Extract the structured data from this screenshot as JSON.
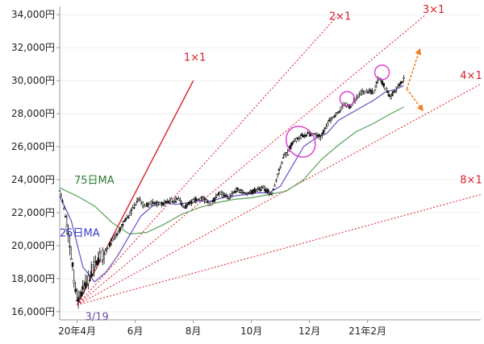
{
  "chart_data": {
    "type": "line",
    "title": "",
    "xlabel": "",
    "ylabel": "",
    "ylim": [
      15500,
      34500
    ],
    "x_ticks": [
      {
        "label": "20年4月",
        "t": 0.6
      },
      {
        "label": "6月",
        "t": 2.6
      },
      {
        "label": "8月",
        "t": 4.6
      },
      {
        "label": "10月",
        "t": 6.6
      },
      {
        "label": "12月",
        "t": 8.6
      },
      {
        "label": "21年2月",
        "t": 10.6
      }
    ],
    "y_ticks": [
      {
        "label": "16,000円",
        "value": 16000
      },
      {
        "label": "18,000円",
        "value": 18000
      },
      {
        "label": "20,000円",
        "value": 20000
      },
      {
        "label": "22,000円",
        "value": 22000
      },
      {
        "label": "24,000円",
        "value": 24000
      },
      {
        "label": "26,000円",
        "value": 26000
      },
      {
        "label": "28,000円",
        "value": 28000
      },
      {
        "label": "30,000円",
        "value": 30000
      },
      {
        "label": "32,000円",
        "value": 32000
      },
      {
        "label": "34,000円",
        "value": 34000
      }
    ],
    "price_series": {
      "t": [
        0.0,
        0.12,
        0.25,
        0.35,
        0.45,
        0.6,
        0.8,
        1.0,
        1.2,
        1.4,
        1.6,
        1.8,
        2.0,
        2.2,
        2.45,
        2.7,
        2.9,
        3.2,
        3.5,
        3.8,
        4.1,
        4.3,
        4.6,
        4.9,
        5.2,
        5.5,
        5.8,
        6.1,
        6.4,
        6.7,
        7.0,
        7.3,
        7.55,
        7.7,
        7.85,
        8.0,
        8.2,
        8.4,
        8.7,
        9.0,
        9.2,
        9.4,
        9.6,
        9.8,
        10.0,
        10.2,
        10.4,
        10.6,
        10.8,
        11.0,
        11.2,
        11.4,
        11.6,
        11.85
      ],
      "y": [
        23400,
        22500,
        21200,
        20000,
        18600,
        16700,
        17300,
        18000,
        18800,
        19300,
        19700,
        20300,
        20700,
        21400,
        22000,
        22900,
        22400,
        22600,
        22500,
        22700,
        22800,
        22300,
        22700,
        22900,
        22500,
        23200,
        22900,
        23400,
        23200,
        23300,
        23500,
        23100,
        24500,
        25400,
        25600,
        26200,
        26500,
        26700,
        26800,
        26600,
        27300,
        27800,
        28100,
        28600,
        28400,
        28900,
        29300,
        29400,
        29300,
        30200,
        29600,
        29000,
        29500,
        30100
      ]
    },
    "series": [
      {
        "name": "75日MA",
        "t": [
          0.0,
          0.6,
          1.2,
          1.8,
          2.4,
          3.0,
          3.6,
          4.2,
          4.8,
          5.4,
          6.0,
          6.6,
          7.2,
          7.8,
          8.4,
          9.0,
          9.6,
          10.2,
          10.8,
          11.4,
          11.85
        ],
        "y": [
          23500,
          23000,
          22400,
          21400,
          20700,
          20800,
          21300,
          21900,
          22300,
          22600,
          22800,
          22900,
          23100,
          23300,
          24000,
          25200,
          26100,
          26900,
          27400,
          28000,
          28400
        ]
      },
      {
        "name": "25日MA",
        "t": [
          0.0,
          0.4,
          0.8,
          1.2,
          1.6,
          2.0,
          2.4,
          2.8,
          3.2,
          3.6,
          4.0,
          4.4,
          4.8,
          5.2,
          5.6,
          6.0,
          6.4,
          6.8,
          7.2,
          7.6,
          8.0,
          8.4,
          8.8,
          9.2,
          9.6,
          10.0,
          10.4,
          10.8,
          11.2,
          11.6,
          11.85
        ],
        "y": [
          23000,
          21500,
          18700,
          17800,
          18400,
          19400,
          20600,
          21800,
          22400,
          22600,
          22500,
          22600,
          22700,
          22700,
          22900,
          23000,
          23100,
          23200,
          23200,
          23600,
          24800,
          26000,
          26500,
          26800,
          27600,
          28000,
          28400,
          28800,
          29300,
          29500,
          29700
        ]
      }
    ],
    "ma_labels": [
      "75日MA",
      "25日MA"
    ],
    "gann": {
      "origin": {
        "label": "3/19",
        "t": 0.6,
        "y": 16400
      },
      "lines": [
        {
          "label": "1×1",
          "end_t": 4.6,
          "end_y": 30000,
          "solid": true
        },
        {
          "label": "2×1",
          "end_t": 9.6,
          "end_y": 34000,
          "solid": false
        },
        {
          "label": "3×1",
          "end_t": 12.6,
          "end_y": 34000,
          "solid": false
        },
        {
          "label": "4×1",
          "end_t": 14.5,
          "end_y": 29800,
          "solid": false
        },
        {
          "label": "8×1",
          "end_t": 14.5,
          "end_y": 23100,
          "solid": false
        }
      ]
    },
    "highlights": [
      {
        "t": 8.3,
        "y": 26300
      },
      {
        "t": 9.9,
        "y": 28900
      },
      {
        "t": 11.1,
        "y": 30500
      }
    ],
    "projection_arrows": [
      {
        "from_t": 11.95,
        "from_y": 29500,
        "to_t": 12.4,
        "to_y": 31900
      },
      {
        "from_t": 11.95,
        "from_y": 29500,
        "to_t": 12.5,
        "to_y": 28200
      }
    ],
    "colors": {
      "price": "#111111",
      "ma75": "#5aa05a",
      "ma25": "#6a4ec2",
      "gann_solid": "#d9202a",
      "gann_dotted": "#e0303c",
      "gann_label": "#d4202a",
      "highlight": "#e040d0",
      "arrow": "#f08020",
      "ma75_label": "#2e7d32",
      "ma25_label": "#3b3bc9",
      "origin_label": "#6a4e9c",
      "grid": "#eeeeee",
      "axis": "#999999"
    },
    "grid": false,
    "legend": "none"
  }
}
